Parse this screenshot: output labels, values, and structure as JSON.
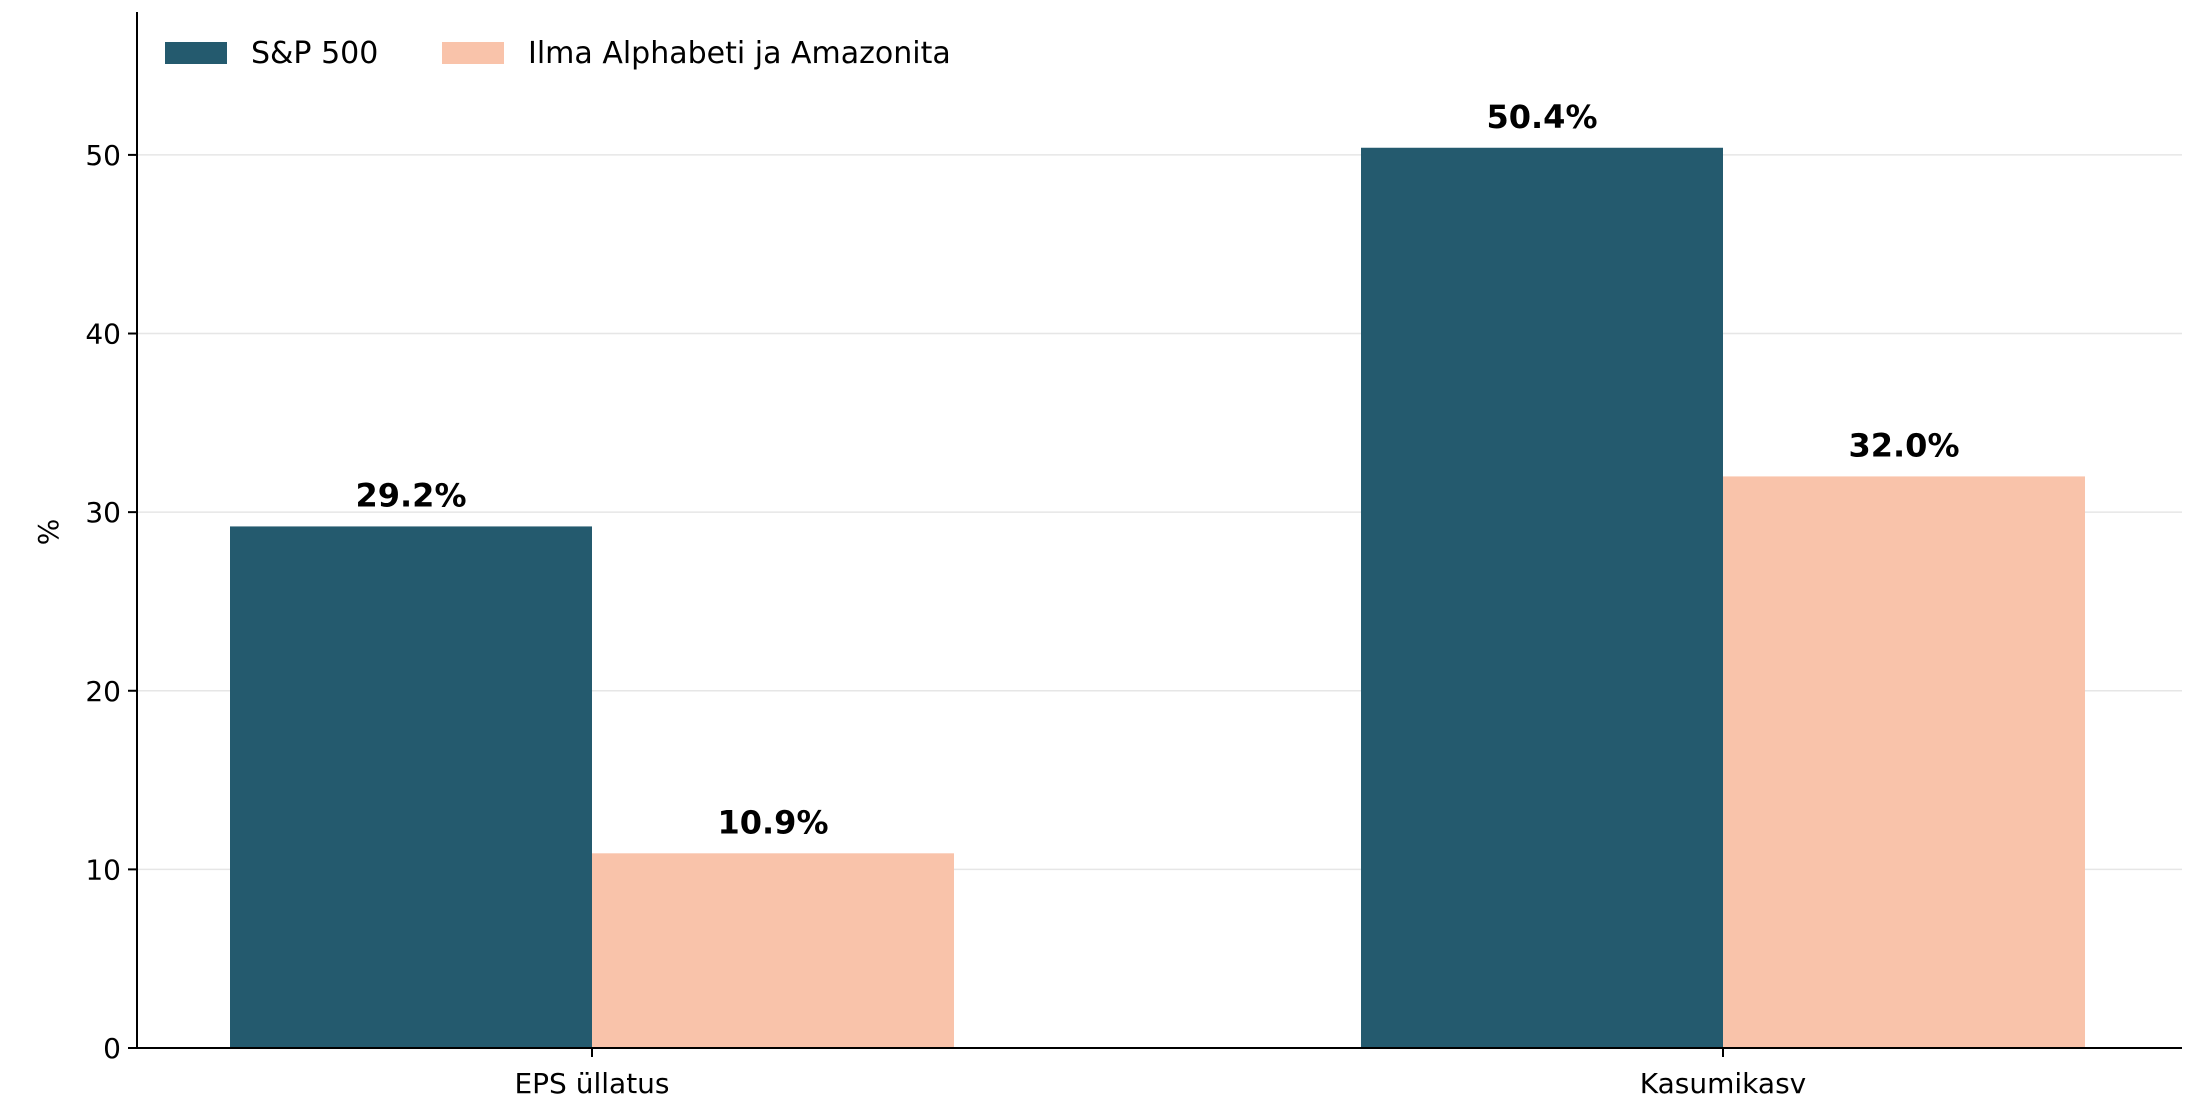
{
  "chart_data": {
    "type": "bar",
    "categories": [
      "EPS üllatus",
      "Kasumikasv"
    ],
    "series": [
      {
        "name": "S&P 500",
        "values": [
          29.2,
          50.4
        ],
        "labels": [
          "29.2%",
          "50.4%"
        ],
        "color": "#245a6e"
      },
      {
        "name": "Ilma Alphabeti ja Amazonita",
        "values": [
          10.9,
          32.0
        ],
        "labels": [
          "10.9%",
          "32.0%"
        ],
        "color": "#f9c3aa"
      }
    ],
    "ylabel": "%",
    "ylim": [
      0,
      58
    ],
    "yticks": [
      0,
      10,
      20,
      30,
      40,
      50
    ],
    "grid": "horizontal",
    "legend_position": "top-left"
  }
}
